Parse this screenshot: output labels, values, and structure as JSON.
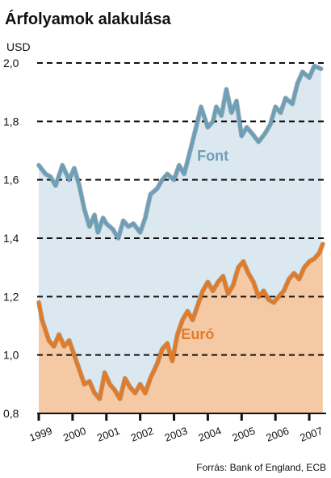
{
  "chart_data": {
    "type": "area",
    "title": "Árfolyamok alakulása",
    "ylabel": "USD",
    "xlabel": "",
    "source": "Forrás: Bank of England, ECB",
    "ylim": [
      0.8,
      2.0
    ],
    "yticks": [
      "2,0",
      "1,8",
      "1,6",
      "1,4",
      "1,2",
      "1,0",
      "0,8"
    ],
    "ytick_values": [
      2.0,
      1.8,
      1.6,
      1.4,
      1.2,
      1.0,
      0.8
    ],
    "categories": [
      "1999",
      "2000",
      "2001",
      "2002",
      "2003",
      "2004",
      "2005",
      "2006",
      "2007"
    ],
    "xlim": [
      1999.0,
      2007.5
    ],
    "grid": "horizontal dashed",
    "series": [
      {
        "name": "Font",
        "color": "#6e9fb8",
        "fill": "#dbe8ef",
        "x": [
          1999.0,
          1999.2,
          1999.35,
          1999.5,
          1999.7,
          1999.9,
          2000.05,
          2000.2,
          2000.35,
          2000.5,
          2000.65,
          2000.75,
          2000.9,
          2001.0,
          2001.2,
          2001.35,
          2001.5,
          2001.65,
          2001.8,
          2002.0,
          2002.15,
          2002.3,
          2002.5,
          2002.65,
          2002.8,
          2003.0,
          2003.15,
          2003.3,
          2003.5,
          2003.65,
          2003.8,
          2004.0,
          2004.15,
          2004.25,
          2004.4,
          2004.55,
          2004.7,
          2004.85,
          2005.0,
          2005.15,
          2005.3,
          2005.5,
          2005.7,
          2005.85,
          2006.0,
          2006.15,
          2006.3,
          2006.5,
          2006.65,
          2006.8,
          2007.0,
          2007.15,
          2007.35
        ],
        "values": [
          1.65,
          1.62,
          1.61,
          1.58,
          1.65,
          1.6,
          1.64,
          1.58,
          1.5,
          1.44,
          1.48,
          1.42,
          1.47,
          1.45,
          1.43,
          1.4,
          1.46,
          1.44,
          1.45,
          1.42,
          1.47,
          1.55,
          1.57,
          1.6,
          1.62,
          1.6,
          1.65,
          1.62,
          1.71,
          1.78,
          1.85,
          1.78,
          1.8,
          1.85,
          1.82,
          1.91,
          1.83,
          1.87,
          1.75,
          1.78,
          1.76,
          1.73,
          1.76,
          1.79,
          1.85,
          1.83,
          1.88,
          1.86,
          1.93,
          1.97,
          1.95,
          1.99,
          1.98
        ]
      },
      {
        "name": "Euró",
        "color": "#e27b27",
        "fill": "#f5c9a3",
        "x": [
          1999.0,
          1999.1,
          1999.3,
          1999.45,
          1999.6,
          1999.75,
          1999.9,
          2000.05,
          2000.2,
          2000.35,
          2000.5,
          2000.65,
          2000.8,
          2000.95,
          2001.1,
          2001.25,
          2001.4,
          2001.55,
          2001.7,
          2001.85,
          2002.0,
          2002.15,
          2002.3,
          2002.5,
          2002.65,
          2002.8,
          2002.95,
          2003.1,
          2003.25,
          2003.4,
          2003.55,
          2003.7,
          2003.85,
          2004.0,
          2004.15,
          2004.3,
          2004.45,
          2004.6,
          2004.75,
          2004.9,
          2005.05,
          2005.2,
          2005.35,
          2005.5,
          2005.65,
          2005.8,
          2005.95,
          2006.1,
          2006.25,
          2006.4,
          2006.55,
          2006.7,
          2006.85,
          2007.0,
          2007.15,
          2007.3,
          2007.4
        ],
        "values": [
          1.18,
          1.12,
          1.05,
          1.03,
          1.07,
          1.03,
          1.05,
          1.0,
          0.95,
          0.9,
          0.91,
          0.87,
          0.85,
          0.94,
          0.9,
          0.88,
          0.85,
          0.92,
          0.89,
          0.87,
          0.9,
          0.87,
          0.92,
          0.97,
          1.02,
          1.04,
          0.98,
          1.07,
          1.12,
          1.15,
          1.12,
          1.17,
          1.22,
          1.25,
          1.22,
          1.25,
          1.27,
          1.21,
          1.24,
          1.3,
          1.32,
          1.28,
          1.25,
          1.2,
          1.22,
          1.19,
          1.18,
          1.2,
          1.22,
          1.26,
          1.28,
          1.26,
          1.3,
          1.32,
          1.33,
          1.35,
          1.38
        ]
      }
    ]
  }
}
